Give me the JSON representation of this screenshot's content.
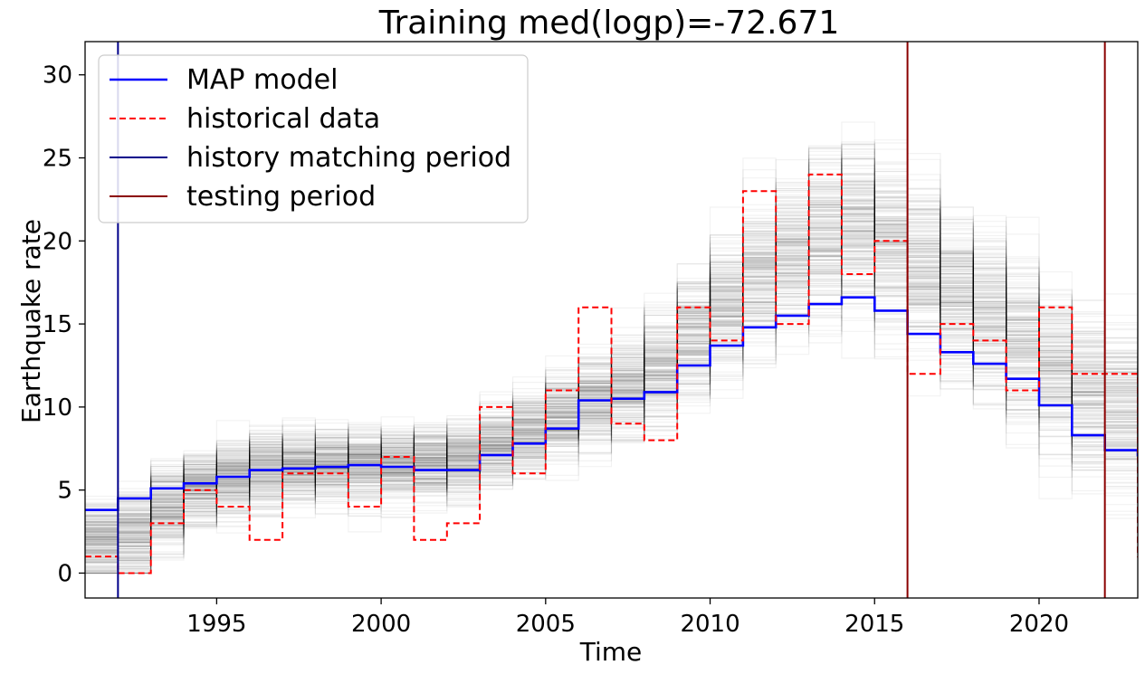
{
  "chart_data": {
    "type": "line",
    "title": "Training med(logp)=-72.671",
    "xlabel": "Time",
    "ylabel": "Earthquake rate",
    "xlim": [
      1991,
      2023
    ],
    "ylim": [
      -1.5,
      32
    ],
    "xticks": [
      1995,
      2000,
      2005,
      2010,
      2015,
      2020
    ],
    "yticks": [
      0,
      5,
      10,
      15,
      20,
      25,
      30
    ],
    "grid": false,
    "legend_position": "top-left",
    "legend": [
      {
        "label": "MAP model",
        "color": "#0000ff",
        "style": "solid"
      },
      {
        "label": "historical data",
        "color": "#ff0000",
        "style": "dashed"
      },
      {
        "label": "history matching period",
        "color": "#00008b",
        "style": "solid"
      },
      {
        "label": "testing period",
        "color": "#8b0000",
        "style": "solid"
      }
    ],
    "step_x": [
      1991,
      1992,
      1993,
      1994,
      1995,
      1996,
      1997,
      1998,
      1999,
      2000,
      2001,
      2002,
      2003,
      2004,
      2005,
      2006,
      2007,
      2008,
      2009,
      2010,
      2011,
      2012,
      2013,
      2014,
      2015,
      2016,
      2017,
      2018,
      2019,
      2020,
      2021,
      2022,
      2023
    ],
    "series": [
      {
        "name": "MAP model",
        "color": "#0000ff",
        "values": [
          3.8,
          4.5,
          5.1,
          5.4,
          5.8,
          6.2,
          6.3,
          6.4,
          6.5,
          6.4,
          6.2,
          6.2,
          7.1,
          7.8,
          8.7,
          10.4,
          10.5,
          10.9,
          12.5,
          13.7,
          14.8,
          15.5,
          16.2,
          16.6,
          15.8,
          14.4,
          13.3,
          12.6,
          11.7,
          10.1,
          8.3,
          7.4,
          7.1
        ]
      },
      {
        "name": "historical data",
        "color": "#ff0000",
        "values": [
          1,
          0,
          3,
          5,
          4,
          2,
          6,
          6,
          4,
          7,
          2,
          3,
          10,
          6,
          11,
          16,
          9,
          8,
          16,
          14,
          23,
          15,
          24,
          18,
          20,
          12,
          15,
          14,
          11,
          16,
          12,
          12,
          1
        ]
      }
    ],
    "ensemble": {
      "description_color": "#000000",
      "median": [
        2.0,
        2.5,
        4.0,
        5.2,
        5.8,
        6.3,
        6.5,
        6.6,
        6.6,
        6.6,
        6.7,
        6.9,
        7.6,
        8.5,
        9.6,
        10.4,
        11.3,
        12.3,
        14.3,
        16.2,
        18.0,
        19.3,
        20.3,
        21.0,
        20.0,
        18.5,
        17.0,
        15.5,
        14.0,
        12.5,
        11.0,
        10.0,
        9.0
      ],
      "spread": [
        1.8,
        2.0,
        1.8,
        1.6,
        1.6,
        1.6,
        1.6,
        1.6,
        1.6,
        1.6,
        1.6,
        1.6,
        1.7,
        1.8,
        1.9,
        2.0,
        2.2,
        2.4,
        2.6,
        2.8,
        3.0,
        3.2,
        3.4,
        3.5,
        3.6,
        3.6,
        3.6,
        3.6,
        3.6,
        3.6,
        3.6,
        3.6,
        3.6
      ]
    },
    "vlines": [
      {
        "x": 1992,
        "color": "#00008b",
        "label": "history matching period"
      },
      {
        "x": 2016,
        "color": "#8b0000",
        "label": "testing period"
      },
      {
        "x": 2022,
        "color": "#8b0000",
        "label": "testing period"
      }
    ]
  }
}
